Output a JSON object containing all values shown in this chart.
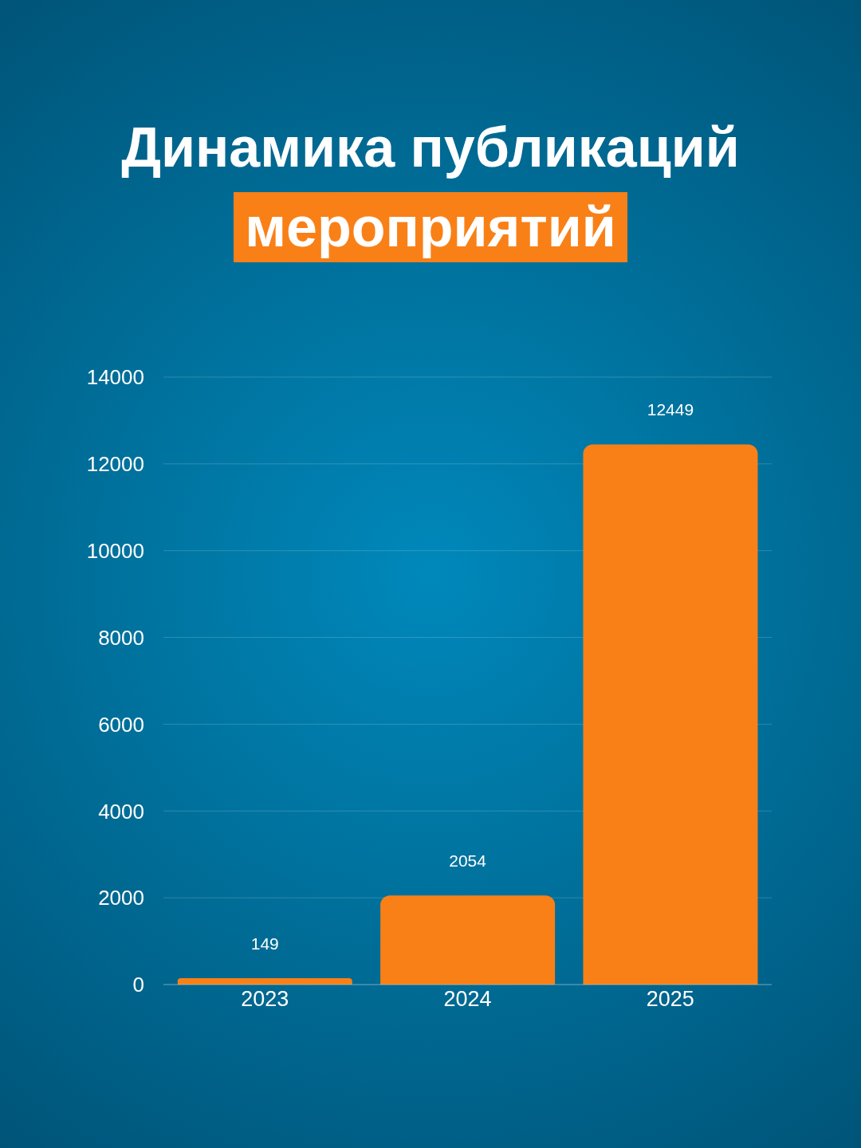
{
  "chart_data": {
    "type": "bar",
    "title": "Динамика публикаций",
    "subtitle": "мероприятий",
    "categories": [
      "2023",
      "2024",
      "2025"
    ],
    "values": [
      149,
      2054,
      12449
    ],
    "color": "#f98017",
    "ylim": [
      0,
      14000
    ],
    "yticks": [
      0,
      2000,
      4000,
      6000,
      8000,
      10000,
      12000,
      14000
    ],
    "grid": "y",
    "data_labels": true
  }
}
